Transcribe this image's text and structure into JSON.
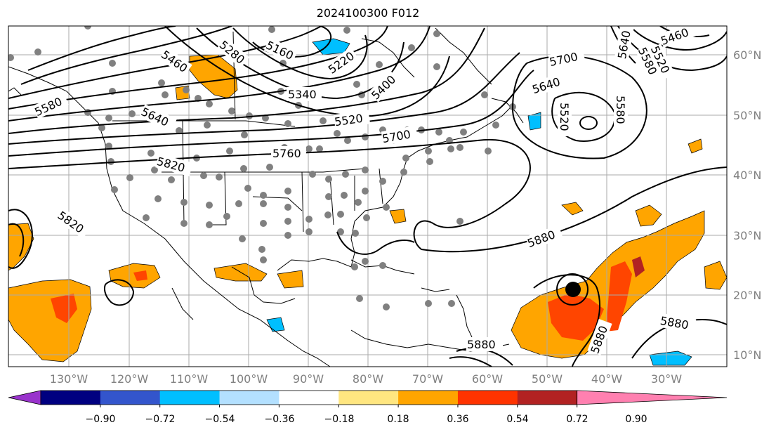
{
  "title": "2024100300 F012",
  "map": {
    "lon_labels": [
      "130°W",
      "120°W",
      "110°W",
      "100°W",
      "90°W",
      "80°W",
      "70°W",
      "60°W",
      "50°W",
      "40°W",
      "30°W"
    ],
    "lat_labels": [
      "60°N",
      "50°N",
      "40°N",
      "30°N",
      "20°N",
      "10°N"
    ],
    "contour_labels": [
      "5460",
      "5280",
      "5160",
      "5220",
      "5400",
      "5340",
      "5580",
      "5520",
      "5640",
      "5760",
      "5700",
      "5820",
      "5820",
      "5880",
      "5880",
      "5880",
      "5880",
      "5700",
      "5640",
      "5520",
      "5580",
      "5460",
      "5580",
      "5520",
      "5640"
    ],
    "colors": {
      "gridline": "#aaaaaa",
      "station_dot": "#808080",
      "coast": "#000000"
    }
  },
  "colorbar": {
    "tick_labels": [
      "−0.90",
      "−0.72",
      "−0.54",
      "−0.36",
      "−0.18",
      "0.18",
      "0.36",
      "0.54",
      "0.72",
      "0.90"
    ],
    "colors": [
      "#9933cc",
      "#000080",
      "#3355cc",
      "#00bfff",
      "#b3e0ff",
      "#ffffff",
      "#ffe680",
      "#ffa500",
      "#ff3300",
      "#b22222",
      "#ff80b0"
    ]
  }
}
